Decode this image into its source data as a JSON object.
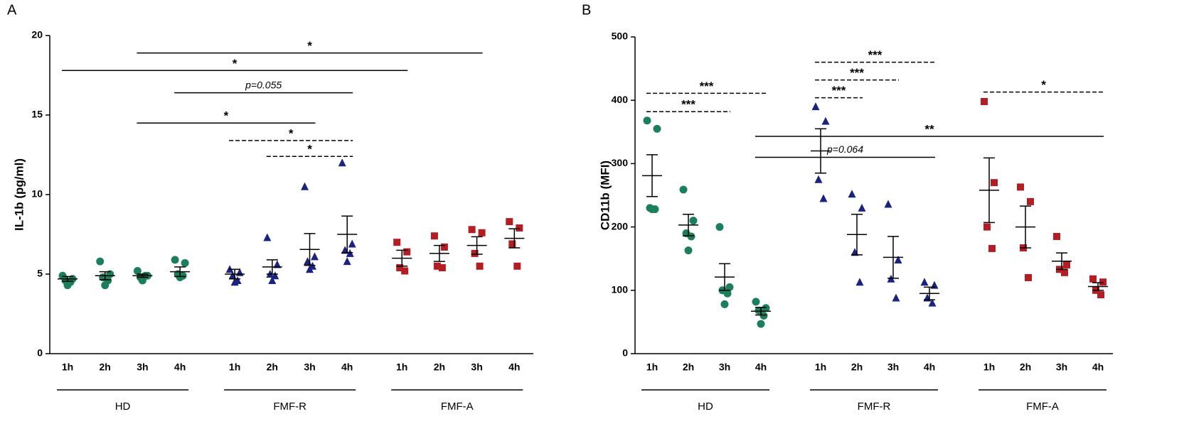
{
  "chart_data": [
    {
      "type": "dot",
      "panel": "A",
      "ylabel": "IL-1b (pg/ml)",
      "ylim": [
        0,
        20
      ],
      "yticks": [
        0,
        5,
        10,
        15,
        20
      ],
      "groups": [
        {
          "name": "HD",
          "color": "#1b7f5b",
          "marker": "circle",
          "categories": [
            "1h",
            "2h",
            "3h",
            "4h"
          ],
          "points": [
            [
              4.9,
              4.7,
              4.6,
              4.5,
              4.3
            ],
            [
              5.8,
              5.0,
              4.8,
              4.6,
              4.3
            ],
            [
              5.2,
              4.9,
              4.8,
              4.9,
              4.6
            ],
            [
              5.9,
              5.7,
              5.0,
              4.9,
              4.8
            ]
          ],
          "mean": [
            4.7,
            4.9,
            4.9,
            5.15
          ],
          "sem": [
            0.15,
            0.25,
            0.1,
            0.3
          ]
        },
        {
          "name": "FMF-R",
          "color": "#1a237e",
          "marker": "triangle",
          "categories": [
            "1h",
            "2h",
            "3h",
            "4h"
          ],
          "points": [
            [
              5.3,
              5.1,
              4.9,
              4.6,
              4.5
            ],
            [
              7.3,
              5.6,
              5.0,
              4.9,
              4.6
            ],
            [
              10.5,
              6.1,
              5.8,
              5.5,
              5.3
            ],
            [
              12.0,
              6.9,
              6.5,
              6.3,
              5.8
            ]
          ],
          "mean": [
            5.0,
            5.45,
            6.55,
            7.5
          ],
          "sem": [
            0.3,
            0.45,
            1.0,
            1.15
          ]
        },
        {
          "name": "FMF-A",
          "color": "#b21e23",
          "marker": "square",
          "categories": [
            "1h",
            "2h",
            "3h",
            "4h"
          ],
          "points": [
            [
              7.0,
              6.4,
              5.4,
              5.2
            ],
            [
              7.4,
              6.7,
              5.5,
              5.4
            ],
            [
              7.8,
              7.6,
              6.3,
              5.5
            ],
            [
              8.3,
              7.9,
              6.9,
              5.5
            ]
          ],
          "mean": [
            6.0,
            6.3,
            6.8,
            7.25
          ],
          "sem": [
            0.5,
            0.5,
            0.55,
            0.6
          ]
        }
      ],
      "annotations": [
        {
          "label": "*",
          "from": {
            "group": "HD",
            "category": "3h"
          },
          "to": {
            "group": "FMF-A",
            "category": "3h"
          },
          "y": 18.9,
          "dashed": false
        },
        {
          "label": "*",
          "from": {
            "group": "HD",
            "category": "1h"
          },
          "to": {
            "group": "FMF-A",
            "category": "1h"
          },
          "y": 17.8,
          "dashed": false
        },
        {
          "label": "p=0.055",
          "italic": true,
          "from": {
            "group": "HD",
            "category": "4h"
          },
          "to": {
            "group": "FMF-R",
            "category": "4h"
          },
          "y": 16.4,
          "dashed": false
        },
        {
          "label": "*",
          "from": {
            "group": "HD",
            "category": "3h"
          },
          "to": {
            "group": "FMF-R",
            "category": "3h"
          },
          "y": 14.5,
          "dashed": false
        },
        {
          "label": "*",
          "from": {
            "group": "FMF-R",
            "category": "1h"
          },
          "to": {
            "group": "FMF-R",
            "category": "4h"
          },
          "y": 13.4,
          "dashed": true
        },
        {
          "label": "*",
          "from": {
            "group": "FMF-R",
            "category": "2h"
          },
          "to": {
            "group": "FMF-R",
            "category": "4h"
          },
          "y": 12.4,
          "dashed": true
        }
      ]
    },
    {
      "type": "dot",
      "panel": "B",
      "ylabel": "CD11b (MFI)",
      "ylim": [
        0,
        500
      ],
      "yticks": [
        0,
        100,
        200,
        300,
        400,
        500
      ],
      "groups": [
        {
          "name": "HD",
          "color": "#1b7f5b",
          "marker": "circle",
          "categories": [
            "1h",
            "2h",
            "3h",
            "4h"
          ],
          "points": [
            [
              368,
              355,
              230,
              228,
              228
            ],
            [
              259,
              210,
              190,
              185,
              163
            ],
            [
              200,
              105,
              100,
              95,
              78
            ],
            [
              82,
              72,
              68,
              60,
              47
            ]
          ],
          "mean": [
            281,
            203,
            121,
            67
          ],
          "sem": [
            33,
            17,
            21,
            6
          ]
        },
        {
          "name": "FMF-R",
          "color": "#1a237e",
          "marker": "triangle",
          "categories": [
            "1h",
            "2h",
            "3h",
            "4h"
          ],
          "points": [
            [
              390,
              367,
              275,
              245
            ],
            [
              252,
              230,
              160,
              113
            ],
            [
              236,
              148,
              118,
              88
            ],
            [
              113,
              108,
              88,
              80
            ]
          ],
          "mean": [
            320,
            188,
            152,
            95
          ],
          "sem": [
            35,
            32,
            33,
            10
          ]
        },
        {
          "name": "FMF-A",
          "color": "#b21e23",
          "marker": "square",
          "categories": [
            "1h",
            "2h",
            "3h",
            "4h"
          ],
          "points": [
            [
              398,
              270,
              200,
              166
            ],
            [
              263,
              240,
              167,
              120
            ],
            [
              185,
              140,
              133,
              128
            ],
            [
              118,
              113,
              100,
              93
            ]
          ],
          "mean": [
            258,
            200,
            146,
            106
          ],
          "sem": [
            51,
            33,
            13,
            6
          ]
        }
      ],
      "annotations": [
        {
          "label": "***",
          "from": {
            "group": "HD",
            "category": "1h"
          },
          "to": {
            "group": "HD",
            "category": "3h"
          },
          "y": 382,
          "dashed": true
        },
        {
          "label": "***",
          "from": {
            "group": "HD",
            "category": "1h"
          },
          "to": {
            "group": "HD",
            "category": "4h"
          },
          "y": 411,
          "dashed": true
        },
        {
          "label": "***",
          "from": {
            "group": "FMF-R",
            "category": "1h"
          },
          "to": {
            "group": "FMF-R",
            "category": "2h"
          },
          "y": 404,
          "dashed": true
        },
        {
          "label": "***",
          "from": {
            "group": "FMF-R",
            "category": "1h"
          },
          "to": {
            "group": "FMF-R",
            "category": "3h"
          },
          "y": 432,
          "dashed": true
        },
        {
          "label": "***",
          "from": {
            "group": "FMF-R",
            "category": "1h"
          },
          "to": {
            "group": "FMF-R",
            "category": "4h"
          },
          "y": 460,
          "dashed": true
        },
        {
          "label": "*",
          "from": {
            "group": "FMF-A",
            "category": "1h"
          },
          "to": {
            "group": "FMF-A",
            "category": "4h"
          },
          "y": 413,
          "dashed": true
        },
        {
          "label": "**",
          "from": {
            "group": "HD",
            "category": "4h"
          },
          "to": {
            "group": "FMF-A",
            "category": "4h"
          },
          "y": 343,
          "dashed": false
        },
        {
          "label": "p=0.064",
          "italic": true,
          "from": {
            "group": "HD",
            "category": "4h"
          },
          "to": {
            "group": "FMF-R",
            "category": "4h"
          },
          "y": 310,
          "dashed": false
        }
      ]
    }
  ]
}
